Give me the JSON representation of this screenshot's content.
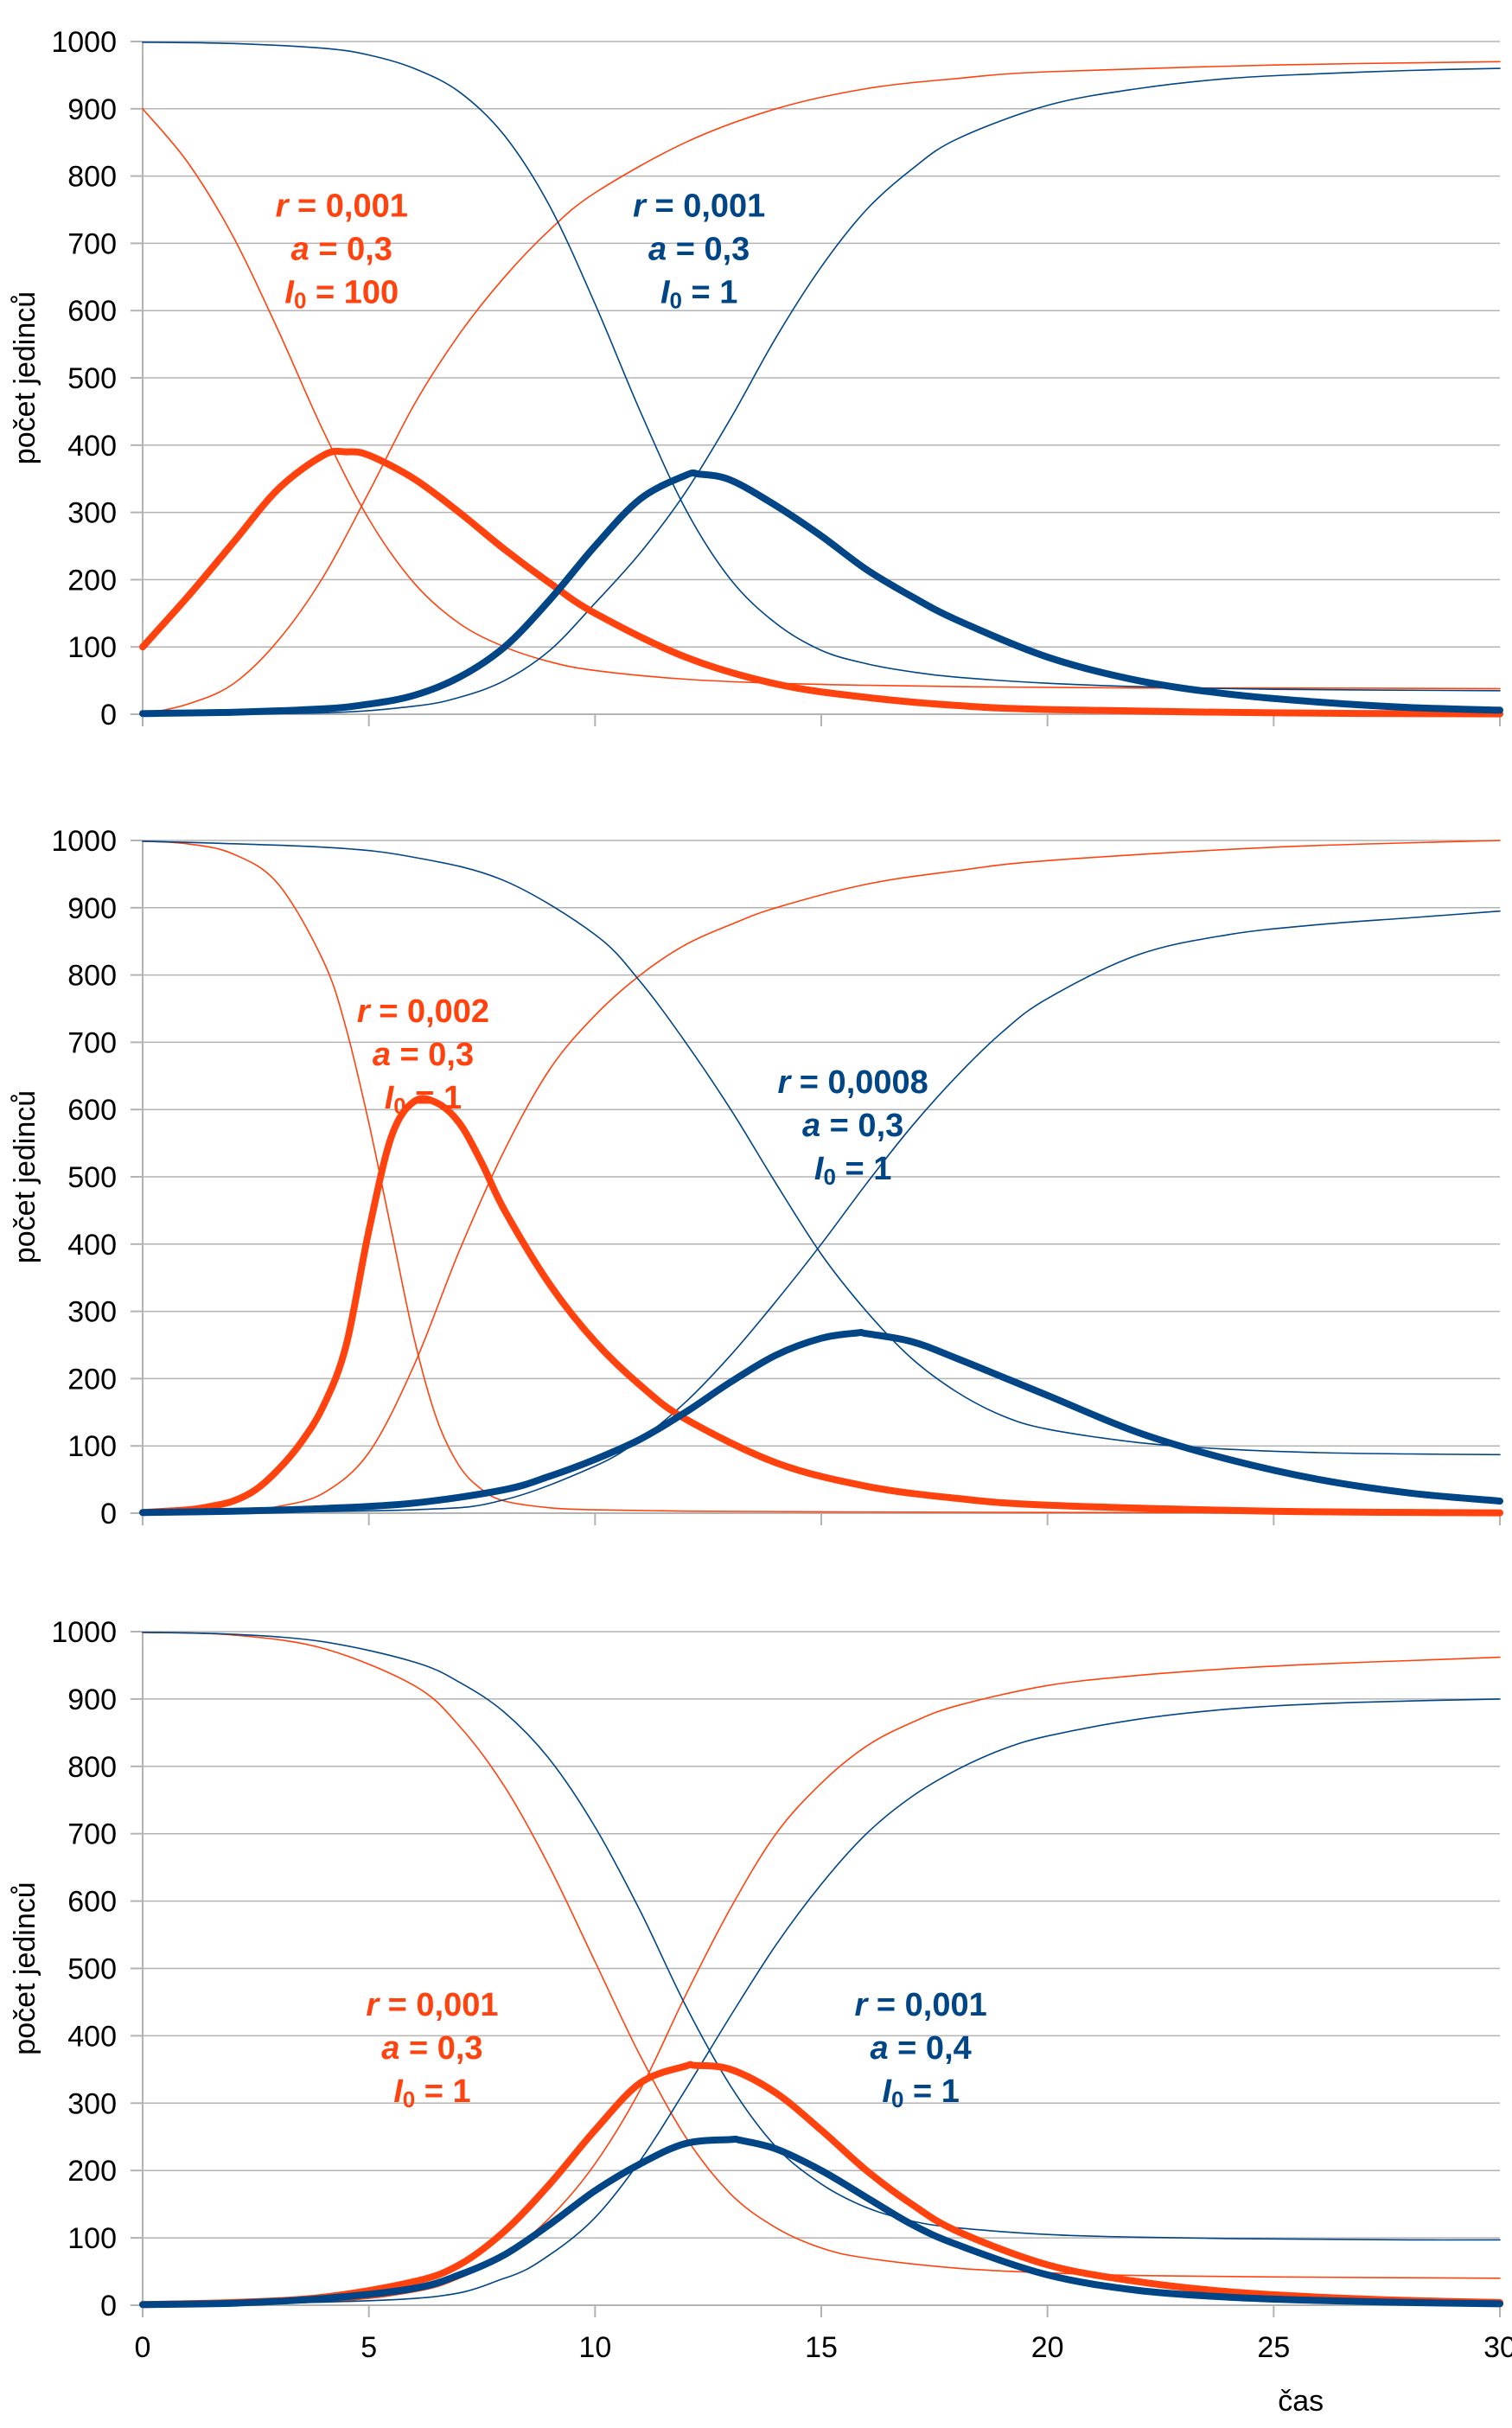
{
  "colors": {
    "red": "#FF420E",
    "blue": "#004586",
    "grid": "#b3b3b3"
  },
  "chart_data": [
    {
      "type": "line",
      "ylabel": "počet jedinců",
      "xlabel": "",
      "xlim": [
        0,
        30
      ],
      "ylim": [
        0,
        1000
      ],
      "yticks": [
        "0",
        "100",
        "200",
        "300",
        "400",
        "500",
        "600",
        "700",
        "800",
        "900",
        "1000"
      ],
      "xticks": [],
      "grid": true,
      "series": [
        {
          "color": "red",
          "weight": "thin",
          "x": [
            0,
            1,
            2,
            3,
            4,
            5,
            6,
            7,
            8,
            9,
            10,
            12,
            14,
            16,
            18,
            20,
            22,
            25,
            30
          ],
          "values": [
            900,
            820,
            710,
            570,
            420,
            290,
            195,
            135,
            100,
            78,
            65,
            52,
            46,
            43,
            41,
            40,
            39,
            39,
            38
          ]
        },
        {
          "color": "red",
          "weight": "bold",
          "x": [
            0,
            1,
            2,
            3,
            4,
            4.5,
            5,
            6,
            7,
            8,
            9,
            10,
            12,
            14,
            16,
            18,
            20,
            25,
            30
          ],
          "values": [
            100,
            175,
            255,
            335,
            385,
            390,
            385,
            350,
            300,
            245,
            195,
            150,
            85,
            45,
            25,
            13,
            7,
            2,
            0.5
          ]
        },
        {
          "color": "red",
          "weight": "thin",
          "x": [
            0,
            1,
            2,
            3,
            4,
            5,
            6,
            7,
            8,
            9,
            10,
            12,
            14,
            16,
            18,
            20,
            25,
            30
          ],
          "values": [
            0,
            15,
            45,
            110,
            205,
            330,
            460,
            565,
            650,
            720,
            775,
            850,
            900,
            930,
            945,
            955,
            965,
            970
          ]
        },
        {
          "color": "blue",
          "weight": "thin",
          "x": [
            0,
            2,
            4,
            5,
            6,
            7,
            8,
            9,
            10,
            11,
            12,
            13,
            14,
            15,
            16,
            17,
            18,
            20,
            22,
            25,
            30
          ],
          "values": [
            999,
            997,
            990,
            980,
            960,
            925,
            860,
            755,
            610,
            450,
            305,
            200,
            135,
            95,
            75,
            63,
            55,
            46,
            41,
            37,
            35
          ]
        },
        {
          "color": "blue",
          "weight": "bold",
          "x": [
            0,
            2,
            4,
            5,
            6,
            7,
            8,
            9,
            10,
            11,
            12,
            12.3,
            13,
            14,
            15,
            16,
            17,
            18,
            20,
            22,
            24,
            26,
            28,
            30
          ],
          "values": [
            1,
            3,
            8,
            15,
            28,
            55,
            100,
            170,
            250,
            320,
            355,
            357,
            348,
            310,
            265,
            215,
            175,
            140,
            85,
            50,
            30,
            18,
            10,
            6
          ]
        },
        {
          "color": "blue",
          "weight": "thin",
          "x": [
            0,
            4,
            6,
            7,
            8,
            9,
            10,
            11,
            12,
            13,
            14,
            15,
            16,
            17,
            18,
            20,
            22,
            24,
            26,
            28,
            30
          ],
          "values": [
            0,
            2,
            12,
            25,
            50,
            95,
            165,
            240,
            330,
            440,
            560,
            665,
            750,
            810,
            855,
            905,
            930,
            945,
            952,
            957,
            960
          ]
        }
      ],
      "annotations": [
        {
          "color": "red",
          "r": "0,001",
          "a": "0,3",
          "i0": "100",
          "at_x": 4.4,
          "at_y": 740
        },
        {
          "color": "blue",
          "r": "0,001",
          "a": "0,3",
          "i0": "1",
          "at_x": 12.3,
          "at_y": 740
        }
      ]
    },
    {
      "type": "line",
      "ylabel": "počet jedinců",
      "xlabel": "",
      "xlim": [
        0,
        30
      ],
      "ylim": [
        0,
        1000
      ],
      "yticks": [
        "0",
        "100",
        "200",
        "300",
        "400",
        "500",
        "600",
        "700",
        "800",
        "900",
        "1000"
      ],
      "xticks": [],
      "grid": true,
      "series": [
        {
          "color": "red",
          "weight": "thin",
          "x": [
            0,
            1,
            2,
            3,
            4,
            4.5,
            5,
            5.5,
            6,
            6.5,
            7,
            7.5,
            8,
            9,
            10,
            12,
            15,
            20,
            30
          ],
          "values": [
            999,
            995,
            980,
            935,
            820,
            720,
            580,
            420,
            260,
            140,
            70,
            35,
            18,
            8,
            5,
            3,
            2,
            1,
            0.5
          ]
        },
        {
          "color": "red",
          "weight": "bold",
          "x": [
            0,
            1,
            1.5,
            2,
            2.5,
            3,
            3.5,
            4,
            4.5,
            5,
            5.5,
            6,
            6.5,
            7,
            7.5,
            8,
            9,
            10,
            11,
            12,
            14,
            16,
            18,
            20,
            25,
            30
          ],
          "values": [
            1,
            5,
            10,
            18,
            35,
            65,
            105,
            160,
            250,
            420,
            560,
            612,
            610,
            580,
            520,
            450,
            340,
            255,
            190,
            140,
            75,
            40,
            22,
            12,
            3,
            0.5
          ]
        },
        {
          "color": "red",
          "weight": "thin",
          "x": [
            0,
            2,
            3,
            4,
            5,
            6,
            7,
            8,
            9,
            10,
            11,
            12,
            13,
            14,
            16,
            18,
            20,
            25,
            30
          ],
          "values": [
            0,
            3,
            10,
            30,
            90,
            220,
            390,
            540,
            660,
            740,
            800,
            845,
            875,
            900,
            935,
            955,
            970,
            990,
            1000
          ]
        },
        {
          "color": "blue",
          "weight": "thin",
          "x": [
            0,
            4,
            6,
            8,
            10,
            11,
            12,
            13,
            14,
            15,
            16,
            17,
            18,
            19,
            20,
            22,
            24,
            26,
            28,
            30
          ],
          "values": [
            999,
            990,
            975,
            940,
            860,
            790,
            700,
            600,
            490,
            385,
            300,
            230,
            180,
            145,
            125,
            105,
            95,
            90,
            88,
            87
          ]
        },
        {
          "color": "blue",
          "weight": "bold",
          "x": [
            0,
            2,
            4,
            6,
            8,
            9,
            10,
            11,
            12,
            13,
            14,
            15,
            15.8,
            16,
            17,
            18,
            20,
            22,
            24,
            26,
            28,
            30
          ],
          "values": [
            1,
            3,
            7,
            15,
            35,
            55,
            80,
            110,
            150,
            195,
            235,
            260,
            268,
            267,
            255,
            230,
            175,
            120,
            80,
            50,
            30,
            18
          ]
        },
        {
          "color": "blue",
          "weight": "thin",
          "x": [
            0,
            6,
            8,
            10,
            11,
            12,
            13,
            14,
            15,
            16,
            17,
            18,
            19,
            20,
            22,
            24,
            26,
            28,
            30
          ],
          "values": [
            0,
            5,
            20,
            70,
            110,
            165,
            235,
            315,
            400,
            490,
            575,
            650,
            715,
            765,
            830,
            860,
            875,
            885,
            895
          ]
        }
      ],
      "annotations": [
        {
          "color": "red",
          "r": "0,002",
          "a": "0,3",
          "i0": "1",
          "at_x": 6.2,
          "at_y": 730
        },
        {
          "color": "blue",
          "r": "0,0008",
          "a": "0,3",
          "i0": "1",
          "at_x": 15.7,
          "at_y": 625
        }
      ]
    },
    {
      "type": "line",
      "ylabel": "počet jedinců",
      "xlabel": "čas",
      "xlim": [
        0,
        30
      ],
      "ylim": [
        0,
        1000
      ],
      "yticks": [
        "0",
        "100",
        "200",
        "300",
        "400",
        "500",
        "600",
        "700",
        "800",
        "900",
        "1000"
      ],
      "xticks": [
        "0",
        "5",
        "10",
        "15",
        "20",
        "25",
        "30"
      ],
      "grid": true,
      "series": [
        {
          "color": "red",
          "weight": "thin",
          "x": [
            0,
            2,
            4,
            6,
            7,
            8,
            9,
            10,
            11,
            12,
            13,
            14,
            15,
            16,
            18,
            20,
            22,
            25,
            30
          ],
          "values": [
            999,
            995,
            975,
            920,
            860,
            770,
            650,
            510,
            370,
            250,
            165,
            115,
            85,
            70,
            55,
            48,
            44,
            42,
            40
          ]
        },
        {
          "color": "red",
          "weight": "bold",
          "x": [
            0,
            2,
            4,
            6,
            7,
            8,
            9,
            10,
            11,
            12,
            12.2,
            13,
            14,
            15,
            16,
            17,
            18,
            20,
            22,
            24,
            26,
            28,
            30
          ],
          "values": [
            1,
            4,
            12,
            35,
            60,
            110,
            180,
            260,
            330,
            355,
            356,
            350,
            315,
            260,
            200,
            150,
            110,
            60,
            35,
            20,
            12,
            7,
            4
          ]
        },
        {
          "color": "red",
          "weight": "thin",
          "x": [
            0,
            4,
            6,
            7,
            8,
            9,
            10,
            11,
            12,
            13,
            14,
            15,
            16,
            17,
            18,
            20,
            22,
            24,
            26,
            28,
            30
          ],
          "values": [
            0,
            5,
            20,
            40,
            75,
            130,
            210,
            320,
            460,
            590,
            700,
            775,
            830,
            865,
            890,
            920,
            935,
            945,
            952,
            957,
            962
          ]
        },
        {
          "color": "blue",
          "weight": "thin",
          "x": [
            0,
            2,
            4,
            6,
            7,
            8,
            9,
            10,
            11,
            12,
            13,
            14,
            15,
            16,
            17,
            18,
            20,
            22,
            24,
            26,
            28,
            30
          ],
          "values": [
            999,
            996,
            985,
            955,
            925,
            880,
            810,
            710,
            585,
            445,
            325,
            235,
            180,
            145,
            125,
            115,
            105,
            101,
            99,
            98,
            97,
            97
          ]
        },
        {
          "color": "blue",
          "weight": "bold",
          "x": [
            0,
            2,
            4,
            6,
            7,
            8,
            9,
            10,
            11,
            12,
            13,
            13.2,
            14,
            15,
            16,
            17,
            18,
            20,
            22,
            24,
            26,
            28,
            30
          ],
          "values": [
            1,
            3,
            10,
            25,
            45,
            75,
            120,
            170,
            210,
            240,
            246,
            245,
            232,
            200,
            160,
            120,
            90,
            45,
            22,
            12,
            7,
            4,
            2
          ]
        },
        {
          "color": "blue",
          "weight": "thin",
          "x": [
            0,
            6,
            8,
            9,
            10,
            11,
            12,
            13,
            14,
            15,
            16,
            17,
            18,
            19,
            20,
            22,
            24,
            26,
            28,
            30
          ],
          "values": [
            0,
            10,
            40,
            75,
            130,
            215,
            320,
            430,
            535,
            625,
            700,
            755,
            795,
            825,
            845,
            870,
            885,
            893,
            897,
            900
          ]
        }
      ],
      "annotations": [
        {
          "color": "red",
          "r": "0,001",
          "a": "0,3",
          "i0": "1",
          "at_x": 6.4,
          "at_y": 430
        },
        {
          "color": "blue",
          "r": "0,001",
          "a": "0,4",
          "i0": "1",
          "at_x": 17.2,
          "at_y": 430
        }
      ]
    }
  ]
}
